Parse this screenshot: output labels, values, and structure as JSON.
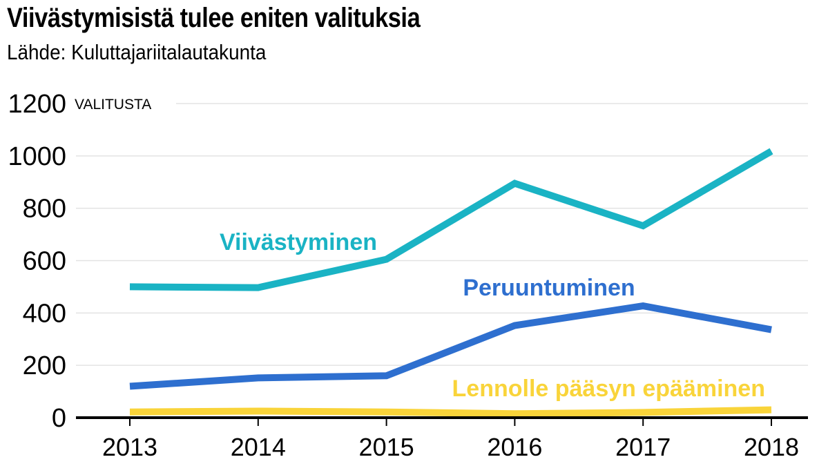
{
  "chart_data": {
    "type": "line",
    "title": "Viivästymisistä tulee eniten valituksia",
    "subtitle": "Lähde: Kuluttajariitalautakunta",
    "ylabel": "VALITUSTA",
    "xlabel": "",
    "categories": [
      "2013",
      "2014",
      "2015",
      "2016",
      "2017",
      "2018"
    ],
    "ylim": [
      0,
      1200
    ],
    "yticks": [
      "0",
      "200",
      "400",
      "600",
      "800",
      "1000",
      "1200"
    ],
    "grid": true,
    "legend": "inline labels",
    "series": [
      {
        "name": "Viivästyminen",
        "color": "#1ab3c4",
        "values": [
          500,
          497,
          605,
          895,
          733,
          1018
        ]
      },
      {
        "name": "Peruuntuminen",
        "color": "#2e6fcf",
        "values": [
          120,
          152,
          160,
          352,
          427,
          336
        ]
      },
      {
        "name": "Lennolle pääsyn epääminen",
        "color": "#f9d43a",
        "values": [
          22,
          25,
          22,
          15,
          20,
          30
        ]
      }
    ]
  }
}
